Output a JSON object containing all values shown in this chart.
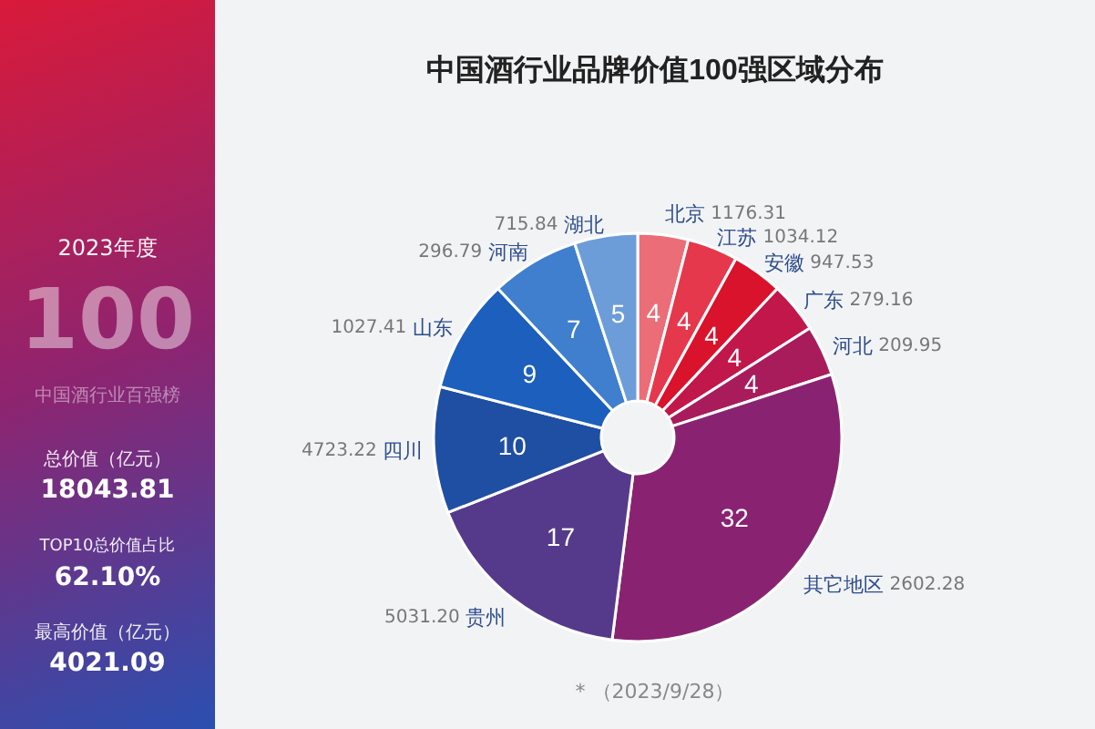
{
  "chart_data": {
    "type": "donut",
    "title": "中国酒行业品牌价值100强区域分布",
    "categories": [
      "北京",
      "江苏",
      "安徽",
      "广东",
      "河北",
      "其它地区",
      "贵州",
      "四川",
      "山东",
      "河南",
      "湖北"
    ],
    "values": [
      4,
      4,
      4,
      4,
      4,
      32,
      17,
      10,
      9,
      7,
      5
    ],
    "colors": [
      "#ea6d78",
      "#e5384c",
      "#d8132b",
      "#c2174a",
      "#a91c5c",
      "#8a2272",
      "#553a8c",
      "#1f4fa3",
      "#1c5fbd",
      "#3f7fce",
      "#6d9dd9"
    ],
    "data_labels": true,
    "annotations": [
      {
        "text": "1176.31",
        "x": "北京"
      },
      {
        "text": "1034.12",
        "x": "江苏"
      },
      {
        "text": "947.53",
        "x": "安徽"
      },
      {
        "text": "279.16",
        "x": "广东"
      },
      {
        "text": "209.95",
        "x": "河北"
      },
      {
        "text": "2602.28",
        "x": "其它地区"
      },
      {
        "text": "5031.20",
        "x": "贵州"
      },
      {
        "text": "4723.22",
        "x": "四川"
      },
      {
        "text": "1027.41",
        "x": "山东"
      },
      {
        "text": "296.79",
        "x": "河南"
      },
      {
        "text": "715.84",
        "x": "湖北"
      },
      "2023年度",
      "100",
      "中国酒行业百强榜",
      "总价值（亿元）",
      "18043.81",
      "TOP10总价值占比",
      "62.10%",
      "最高价值（亿元）",
      "4021.09",
      "* （2023/9/28）"
    ]
  }
}
